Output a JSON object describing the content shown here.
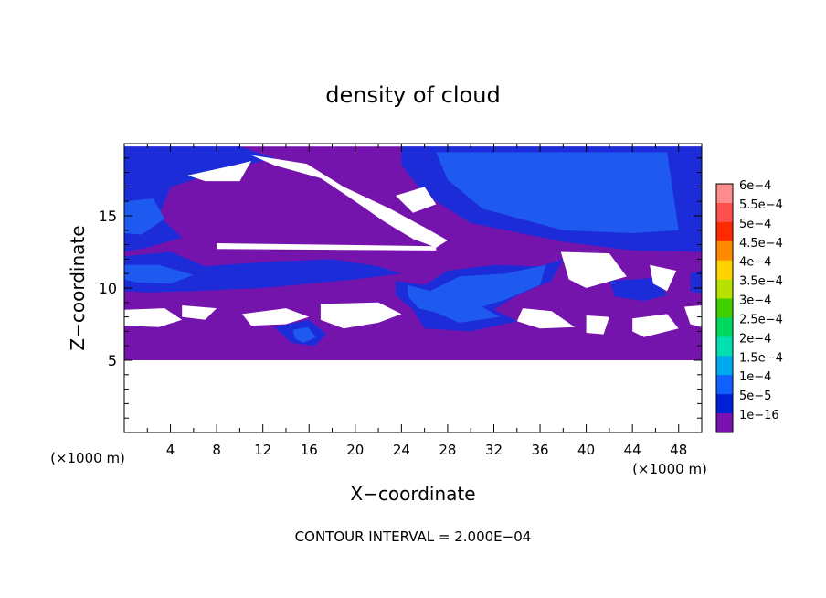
{
  "chart_data": {
    "type": "heatmap",
    "title": "density of cloud",
    "xlabel": "X−coordinate",
    "ylabel": "Z−coordinate",
    "x_unit_left": "(×1000 m)",
    "x_unit_right": "(×1000 m)",
    "xlim": [
      0,
      50
    ],
    "ylim": [
      0,
      20
    ],
    "x_ticks": [
      "4",
      "8",
      "12",
      "16",
      "20",
      "24",
      "28",
      "32",
      "36",
      "40",
      "44",
      "48"
    ],
    "x_tick_values": [
      4,
      8,
      12,
      16,
      20,
      24,
      28,
      32,
      36,
      40,
      44,
      48
    ],
    "y_ticks": [
      "5",
      "10",
      "15"
    ],
    "y_tick_values": [
      5,
      10,
      15
    ],
    "footer": "CONTOUR INTERVAL = 2.000E−04",
    "colorbar": {
      "labels": [
        "6e−4",
        "5.5e−4",
        "5e−4",
        "4.5e−4",
        "4e−4",
        "3.5e−4",
        "3e−4",
        "2.5e−4",
        "2e−4",
        "1.5e−4",
        "1e−4",
        "5e−5",
        "1e−16"
      ],
      "colors": [
        "#ff8c8c",
        "#ff5050",
        "#ff2a00",
        "#ff8a00",
        "#ffd200",
        "#b8e000",
        "#40d000",
        "#00d860",
        "#00e0b0",
        "#00a8f0",
        "#1060ff",
        "#0020d8",
        "#7a10b0"
      ]
    },
    "cloud_base_z": 5,
    "cloud_top_z": 20,
    "regions": [
      {
        "level": "1e-16",
        "color": "#7414ac",
        "shape": [
          [
            0,
            5
          ],
          [
            50,
            5
          ],
          [
            50,
            19.8
          ],
          [
            0,
            19.8
          ]
        ]
      },
      {
        "level": "5e-5",
        "color": "#1c2cd8",
        "shape": [
          [
            24,
            19.8
          ],
          [
            50,
            19.8
          ],
          [
            50,
            12.5
          ],
          [
            44,
            12.6
          ],
          [
            38,
            13.2
          ],
          [
            30,
            14.5
          ],
          [
            26,
            16.5
          ],
          [
            24,
            18.5
          ]
        ]
      },
      {
        "level": "1e-4",
        "color": "#1e5af0",
        "shape": [
          [
            27,
            19.4
          ],
          [
            47,
            19.4
          ],
          [
            48,
            14
          ],
          [
            44,
            13.8
          ],
          [
            38,
            14
          ],
          [
            31,
            15.5
          ],
          [
            28,
            17.5
          ]
        ]
      },
      {
        "level": "5e-5",
        "color": "#1c2cd8",
        "shape": [
          [
            0,
            19.8
          ],
          [
            10,
            19.8
          ],
          [
            13,
            19
          ],
          [
            8,
            18
          ],
          [
            4,
            17
          ],
          [
            3,
            15
          ],
          [
            5,
            13.5
          ],
          [
            2,
            12.8
          ],
          [
            0,
            12.5
          ]
        ]
      },
      {
        "level": "1e-4",
        "color": "#1e5af0",
        "shape": [
          [
            0,
            16
          ],
          [
            2.5,
            16.2
          ],
          [
            3.5,
            14.8
          ],
          [
            1.5,
            13.7
          ],
          [
            0,
            13.8
          ]
        ]
      },
      {
        "level": "5e-5",
        "color": "#1c2cd8",
        "shape": [
          [
            0,
            12.2
          ],
          [
            4,
            12.5
          ],
          [
            7,
            11.5
          ],
          [
            12,
            11.8
          ],
          [
            18,
            12
          ],
          [
            22,
            11.5
          ],
          [
            24,
            11
          ],
          [
            20,
            10.6
          ],
          [
            12,
            10
          ],
          [
            6,
            9.8
          ],
          [
            2,
            9.7
          ],
          [
            0,
            9.8
          ]
        ]
      },
      {
        "level": "1e-4",
        "color": "#1e5af0",
        "shape": [
          [
            0,
            11.6
          ],
          [
            3,
            11.6
          ],
          [
            6,
            10.9
          ],
          [
            4,
            10.3
          ],
          [
            1,
            10.4
          ],
          [
            0,
            10.6
          ]
        ]
      },
      {
        "level": "5e-5",
        "color": "#1c2cd8",
        "shape": [
          [
            23.5,
            10.5
          ],
          [
            26,
            10.2
          ],
          [
            28,
            11.2
          ],
          [
            32,
            11.6
          ],
          [
            36,
            11.5
          ],
          [
            38,
            12
          ],
          [
            37,
            10.5
          ],
          [
            34,
            9.5
          ],
          [
            32,
            8.5
          ],
          [
            34,
            7.7
          ],
          [
            30,
            7
          ],
          [
            26,
            7.2
          ],
          [
            25,
            8.5
          ],
          [
            23.5,
            9.5
          ]
        ]
      },
      {
        "level": "1e-4",
        "color": "#1e5af0",
        "shape": [
          [
            24.5,
            10.2
          ],
          [
            26.5,
            9.8
          ],
          [
            29,
            10.8
          ],
          [
            33,
            11
          ],
          [
            36.5,
            11.6
          ],
          [
            36,
            10.2
          ],
          [
            33,
            9.2
          ],
          [
            31,
            8.7
          ],
          [
            32.5,
            8
          ],
          [
            29,
            7.6
          ],
          [
            27,
            8.3
          ],
          [
            25.5,
            8.6
          ],
          [
            24.6,
            9.4
          ]
        ]
      },
      {
        "level": "5e-5",
        "color": "#1c2cd8",
        "shape": [
          [
            13,
            7.3
          ],
          [
            16,
            7.8
          ],
          [
            17.5,
            6.8
          ],
          [
            16.5,
            6
          ],
          [
            14.5,
            6.2
          ]
        ]
      },
      {
        "level": "1e-4",
        "color": "#1e5af0",
        "shape": [
          [
            14.6,
            7.1
          ],
          [
            15.9,
            7.3
          ],
          [
            16.6,
            6.6
          ],
          [
            15.5,
            6.2
          ],
          [
            14.8,
            6.5
          ]
        ]
      },
      {
        "level": "5e-5",
        "color": "#1c2cd8",
        "shape": [
          [
            42,
            10.5
          ],
          [
            46,
            10.7
          ],
          [
            47,
            9.5
          ],
          [
            45,
            9.1
          ],
          [
            42.5,
            9.4
          ]
        ]
      },
      {
        "level": "5e-5",
        "color": "#1c2cd8",
        "shape": [
          [
            49,
            11
          ],
          [
            50,
            11.2
          ],
          [
            50,
            9.6
          ],
          [
            49,
            9.8
          ]
        ]
      }
    ],
    "gaps": [
      {
        "shape": [
          [
            0,
            8.5
          ],
          [
            3.5,
            8.6
          ],
          [
            5,
            7.8
          ],
          [
            3,
            7.3
          ],
          [
            0,
            7.4
          ]
        ]
      },
      {
        "shape": [
          [
            5,
            8.8
          ],
          [
            8,
            8.6
          ],
          [
            7,
            7.8
          ],
          [
            5,
            8
          ]
        ]
      },
      {
        "shape": [
          [
            10.2,
            8.2
          ],
          [
            14,
            8.6
          ],
          [
            16,
            8
          ],
          [
            14,
            7.5
          ],
          [
            11,
            7.4
          ]
        ]
      },
      {
        "shape": [
          [
            17,
            8.9
          ],
          [
            22,
            9
          ],
          [
            24,
            8.2
          ],
          [
            22,
            7.6
          ],
          [
            19,
            7.2
          ],
          [
            17,
            7.8
          ]
        ]
      },
      {
        "shape": [
          [
            34.5,
            8.6
          ],
          [
            37,
            8.4
          ],
          [
            39,
            7.3
          ],
          [
            36,
            7.2
          ],
          [
            34,
            7.7
          ]
        ]
      },
      {
        "shape": [
          [
            40,
            8.1
          ],
          [
            42,
            8
          ],
          [
            41.5,
            6.8
          ],
          [
            40,
            6.9
          ]
        ]
      },
      {
        "shape": [
          [
            44,
            7.9
          ],
          [
            47,
            8.2
          ],
          [
            48,
            7.2
          ],
          [
            45,
            6.6
          ],
          [
            44,
            7
          ]
        ]
      },
      {
        "shape": [
          [
            48.5,
            8.7
          ],
          [
            50,
            8.8
          ],
          [
            50,
            7.3
          ],
          [
            49,
            7.5
          ]
        ]
      },
      {
        "shape": [
          [
            37.8,
            12.5
          ],
          [
            42,
            12.4
          ],
          [
            43.5,
            10.8
          ],
          [
            40,
            10
          ],
          [
            38.5,
            10.6
          ]
        ]
      },
      {
        "shape": [
          [
            45.5,
            11.6
          ],
          [
            47.8,
            11.2
          ],
          [
            47,
            9.8
          ],
          [
            45.8,
            10.3
          ]
        ]
      },
      {
        "shape": [
          [
            5.5,
            17.8
          ],
          [
            9.5,
            18.5
          ],
          [
            11,
            18.8
          ],
          [
            10,
            17.4
          ],
          [
            7,
            17.4
          ]
        ]
      },
      {
        "shape": [
          [
            11,
            19.2
          ],
          [
            15.8,
            18.6
          ],
          [
            19,
            17
          ],
          [
            23,
            15.5
          ],
          [
            26,
            14.2
          ],
          [
            28,
            13.3
          ],
          [
            27,
            12.8
          ],
          [
            25,
            13.4
          ],
          [
            22.5,
            14.6
          ],
          [
            20,
            16
          ],
          [
            17,
            17.6
          ],
          [
            13,
            18.5
          ]
        ]
      },
      {
        "shape": [
          [
            8,
            13.1
          ],
          [
            27,
            12.9
          ],
          [
            27,
            12.6
          ],
          [
            8,
            12.7
          ]
        ]
      },
      {
        "shape": [
          [
            23.5,
            16.4
          ],
          [
            26,
            17
          ],
          [
            27,
            15.8
          ],
          [
            25,
            15.2
          ]
        ]
      }
    ]
  }
}
